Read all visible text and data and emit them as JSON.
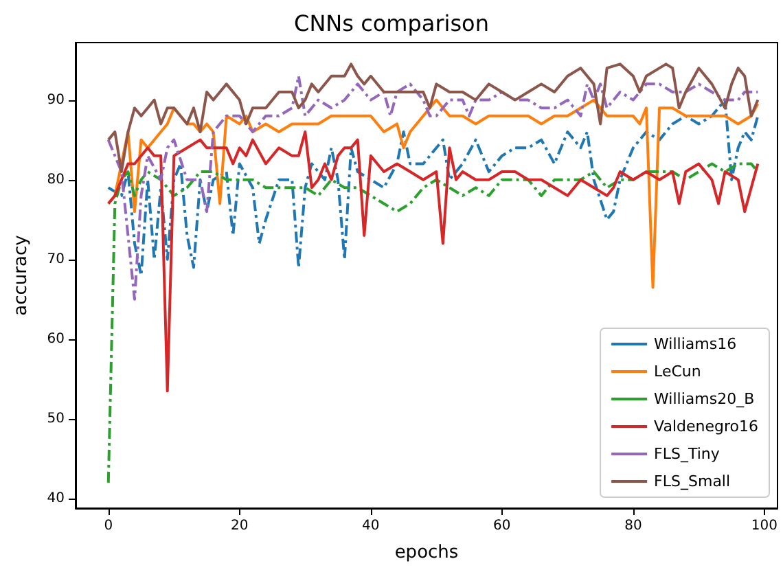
{
  "chart_data": {
    "type": "line",
    "title": "CNNs comparison",
    "xlabel": "epochs",
    "ylabel": "accuracy",
    "xlim": [
      -5,
      102
    ],
    "ylim": [
      38.8,
      97.2
    ],
    "xticks": [
      0,
      20,
      40,
      60,
      80,
      100
    ],
    "yticks": [
      40,
      50,
      60,
      70,
      80,
      90
    ],
    "grid": false,
    "legend": "bottom right",
    "marker": "none",
    "series": [
      {
        "name": "Williams16",
        "color": "#1f77b4",
        "line_style": "dashdot",
        "x": [
          0,
          2,
          3,
          4,
          5,
          6,
          7,
          8,
          9,
          10,
          11,
          12,
          13,
          14,
          15,
          16,
          18,
          19,
          20,
          22,
          23,
          24,
          26,
          28,
          29,
          30,
          31,
          33,
          34,
          35,
          36,
          37,
          38,
          40,
          42,
          44,
          45,
          46,
          48,
          50,
          51,
          52,
          54,
          56,
          58,
          60,
          62,
          64,
          66,
          68,
          70,
          72,
          73,
          74,
          76,
          77,
          78,
          80,
          82,
          84,
          86,
          88,
          90,
          92,
          94,
          95,
          96,
          97,
          98,
          99
        ],
        "values": [
          79,
          78,
          81,
          72,
          68,
          80,
          70,
          79,
          70,
          80,
          82,
          73,
          69,
          80,
          76,
          80,
          81,
          73,
          82,
          79,
          72,
          75,
          80,
          80,
          69,
          79,
          82,
          80,
          84,
          80,
          70,
          84,
          81,
          80,
          79,
          82,
          86,
          82,
          82,
          84,
          85,
          80,
          82,
          85,
          81,
          83,
          84,
          84,
          85,
          82,
          86,
          84,
          86,
          80,
          75,
          76,
          80,
          84,
          86,
          85,
          87,
          88,
          87,
          88,
          90,
          80,
          84,
          86,
          85,
          88
        ]
      },
      {
        "name": "LeCun",
        "color": "#ff7f0e",
        "line_style": "solid",
        "x": [
          0,
          1,
          2,
          3,
          4,
          5,
          6,
          8,
          9,
          10,
          12,
          13,
          14,
          15,
          16,
          17,
          18,
          20,
          21,
          22,
          24,
          26,
          28,
          30,
          32,
          34,
          36,
          38,
          40,
          42,
          44,
          45,
          46,
          48,
          50,
          52,
          54,
          56,
          58,
          60,
          62,
          64,
          66,
          68,
          70,
          72,
          74,
          76,
          78,
          80,
          81,
          82,
          83,
          84,
          86,
          88,
          90,
          92,
          94,
          96,
          98,
          99
        ],
        "values": [
          77,
          78,
          82,
          86,
          76,
          85,
          84,
          86,
          87,
          89,
          87,
          87,
          86,
          87,
          86,
          77,
          88,
          87,
          88,
          86,
          87,
          86,
          87,
          87,
          87,
          88,
          88,
          88,
          88,
          86,
          87,
          84,
          86,
          88,
          90,
          88,
          88,
          87,
          88,
          88,
          88,
          88,
          87,
          88,
          88,
          89,
          90,
          88,
          88,
          88,
          87,
          89,
          66.5,
          89,
          89,
          88,
          88,
          88,
          88,
          87,
          88,
          89.5
        ]
      },
      {
        "name": "Williams20_B",
        "color": "#2ca02c",
        "line_style": "dashdot",
        "x": [
          0,
          1,
          2,
          3,
          4,
          5,
          6,
          8,
          10,
          12,
          14,
          16,
          18,
          20,
          22,
          24,
          26,
          28,
          30,
          32,
          34,
          36,
          38,
          40,
          42,
          44,
          46,
          48,
          50,
          52,
          54,
          56,
          58,
          60,
          62,
          64,
          66,
          68,
          70,
          72,
          74,
          76,
          78,
          80,
          82,
          84,
          86,
          88,
          90,
          92,
          94,
          96,
          98,
          99
        ],
        "values": [
          42,
          77,
          80,
          81,
          78,
          80,
          81,
          80,
          78,
          79,
          81,
          81,
          80,
          80,
          80,
          79,
          79,
          79,
          79,
          78,
          80,
          79,
          79,
          78,
          77,
          76,
          77,
          79,
          80,
          79,
          78,
          79,
          78,
          80,
          80,
          80,
          78,
          80,
          80,
          80,
          81,
          79,
          80,
          80,
          81,
          81,
          81,
          80,
          81,
          82,
          81,
          82,
          82,
          81
        ]
      },
      {
        "name": "Valdenegro16",
        "color": "#d62728",
        "line_style": "solid",
        "x": [
          0,
          1,
          2,
          3,
          4,
          6,
          7,
          8,
          9,
          10,
          12,
          14,
          15,
          16,
          18,
          19,
          20,
          21,
          22,
          24,
          26,
          28,
          29,
          30,
          31,
          32,
          33,
          34,
          35,
          36,
          37,
          38,
          39,
          40,
          41,
          42,
          44,
          46,
          48,
          50,
          51,
          52,
          53,
          54,
          56,
          58,
          60,
          62,
          64,
          66,
          68,
          70,
          72,
          74,
          76,
          77,
          78,
          80,
          82,
          84,
          86,
          87,
          88,
          90,
          92,
          93,
          94,
          96,
          97,
          98,
          99
        ],
        "values": [
          77,
          78,
          80,
          82,
          82,
          84,
          83,
          83,
          53.5,
          83,
          84,
          85,
          84,
          84,
          84,
          82,
          84,
          83,
          85,
          82,
          84,
          83,
          83,
          86,
          79,
          80,
          82,
          80,
          83,
          84,
          84,
          85,
          73,
          83,
          82,
          81,
          82,
          81,
          80,
          81,
          72,
          84,
          80,
          81,
          80,
          80,
          81,
          81,
          80,
          80,
          79,
          78,
          80,
          79,
          78,
          79,
          81,
          80,
          81,
          80,
          81,
          77,
          81,
          82,
          80,
          77,
          81,
          80,
          76,
          79,
          82
        ]
      },
      {
        "name": "FLS_Tiny",
        "color": "#9467bd",
        "line_style": "dashdot",
        "x": [
          0,
          1,
          2,
          3,
          4,
          5,
          6,
          8,
          9,
          10,
          12,
          14,
          15,
          16,
          18,
          20,
          22,
          24,
          26,
          28,
          29,
          30,
          32,
          34,
          36,
          38,
          40,
          42,
          43,
          44,
          46,
          48,
          49,
          50,
          52,
          54,
          55,
          56,
          58,
          60,
          62,
          64,
          66,
          68,
          70,
          72,
          73,
          74,
          75,
          76,
          78,
          80,
          82,
          84,
          86,
          88,
          90,
          92,
          94,
          96,
          97,
          98,
          99
        ],
        "values": [
          85,
          83,
          81,
          73,
          65,
          78,
          83,
          80,
          84,
          85,
          80,
          80,
          76,
          86,
          88,
          88,
          86,
          88,
          88,
          89,
          93,
          88,
          90,
          89,
          90,
          92,
          90,
          91,
          88,
          91,
          92,
          90,
          88,
          88,
          90,
          90,
          88,
          90,
          90,
          91,
          90,
          90,
          89,
          89,
          90,
          88,
          92,
          90,
          92,
          89,
          91,
          90,
          92,
          92,
          91,
          91,
          92,
          91,
          90,
          90,
          91,
          91,
          91
        ]
      },
      {
        "name": "FLS_Small",
        "color": "#8c564b",
        "line_style": "solid",
        "x": [
          0,
          1,
          2,
          3,
          4,
          5,
          6,
          7,
          8,
          9,
          10,
          12,
          13,
          14,
          15,
          16,
          17,
          18,
          20,
          21,
          22,
          24,
          26,
          28,
          29,
          30,
          31,
          32,
          34,
          36,
          37,
          38,
          39,
          40,
          42,
          44,
          46,
          48,
          49,
          50,
          52,
          54,
          56,
          58,
          60,
          62,
          64,
          66,
          68,
          70,
          72,
          74,
          75,
          76,
          78,
          80,
          81,
          82,
          84,
          85,
          86,
          87,
          88,
          90,
          92,
          94,
          95,
          96,
          97,
          98,
          99
        ],
        "values": [
          85,
          86,
          81,
          86,
          89,
          88,
          89,
          90,
          87,
          89,
          89,
          87,
          89,
          86,
          91,
          90,
          91,
          92,
          90,
          87,
          89,
          89,
          91,
          91,
          89,
          90,
          92,
          91,
          93,
          93,
          94.5,
          93,
          92,
          93,
          91,
          91,
          91,
          91,
          89,
          92,
          91,
          91,
          90,
          92,
          91,
          90,
          91,
          92,
          91,
          93,
          94,
          92,
          87,
          94,
          94.5,
          93,
          91,
          93,
          94,
          94.5,
          94,
          89,
          91,
          94,
          92,
          89,
          92,
          94,
          93,
          88,
          90
        ]
      }
    ]
  }
}
